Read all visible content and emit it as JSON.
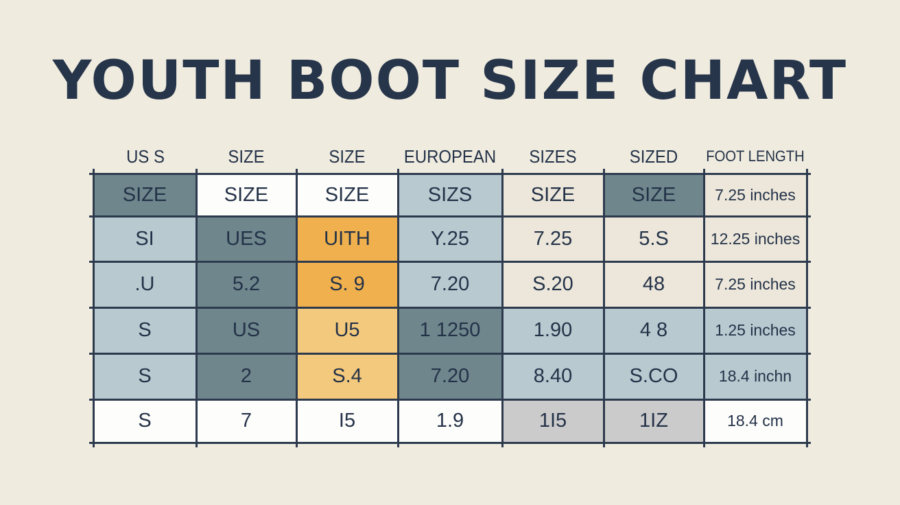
{
  "colors": {
    "background": "#efebdf",
    "ink": "#243248",
    "line": "#2d3a4e",
    "dark": "#6e868c",
    "light_blue": "#b8c9d0",
    "white": "#fdfdfb",
    "cream": "#ece7da",
    "orange": "#efb04d",
    "light_orange": "#f3c97d",
    "gray": "#cbcbcb"
  },
  "chart_data": {
    "type": "table",
    "title": "YOUTH BOOT SIZE CHART",
    "columns": [
      "US S",
      "SIZE",
      "SIZE",
      "EUROPEAN",
      "SIZES",
      "SIZED",
      "FOOT LENGTH"
    ],
    "rows": [
      [
        "SIZE",
        "SIZE",
        "SIZE",
        "SIZS",
        "SIZE",
        "SIZE",
        "7.25 inches"
      ],
      [
        "SI",
        "UES",
        "UITH",
        "Y.25",
        "7.25",
        "5.S",
        "12.25 inches"
      ],
      [
        ".U",
        "5.2",
        "S. 9",
        "7.20",
        "S.20",
        "48",
        "7.25 inches"
      ],
      [
        "S",
        "US",
        "U5",
        "1 1250",
        "1.90",
        "4 8",
        "1.25 inches"
      ],
      [
        "S",
        "2",
        "S.4",
        "7.20",
        "8.40",
        "S.CO",
        "18.4 inchn"
      ],
      [
        "S",
        "7",
        "I5",
        "1.9",
        "1I5",
        "1IZ",
        "18.4 cm"
      ]
    ],
    "cell_fills": [
      [
        "dark",
        "white",
        "white",
        "light_blue",
        "cream",
        "dark",
        "cream"
      ],
      [
        "light_blue",
        "dark",
        "orange",
        "light_blue",
        "cream",
        "cream",
        "cream"
      ],
      [
        "light_blue",
        "dark",
        "orange",
        "light_blue",
        "cream",
        "cream",
        "cream"
      ],
      [
        "light_blue",
        "dark",
        "light_orange",
        "dark",
        "light_blue",
        "light_blue",
        "light_blue"
      ],
      [
        "light_blue",
        "dark",
        "light_orange",
        "dark",
        "light_blue",
        "light_blue",
        "light_blue"
      ],
      [
        "white",
        "white",
        "white",
        "white",
        "gray",
        "gray",
        "white"
      ]
    ]
  }
}
